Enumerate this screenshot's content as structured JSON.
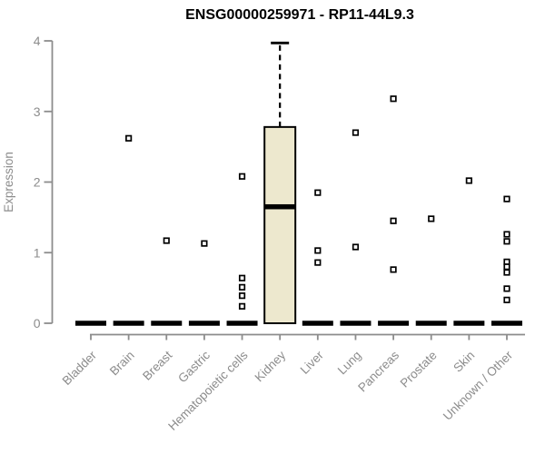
{
  "chart_data": {
    "type": "boxplot",
    "title": "ENSG00000259971 - RP11-44L9.3",
    "xlabel": "",
    "ylabel": "Expression",
    "ylim": [
      0,
      4
    ],
    "yticks": [
      0,
      1,
      2,
      3,
      4
    ],
    "grid": false,
    "legend": "none",
    "categories": [
      "Bladder",
      "Brain",
      "Breast",
      "Gastric",
      "Hematopoietic cells",
      "Kidney",
      "Liver",
      "Lung",
      "Pancreas",
      "Prostate",
      "Skin",
      "Unknown / Other"
    ],
    "boxes": [
      {
        "category": "Bladder",
        "q1": 0,
        "median": 0,
        "q3": 0,
        "whisker_low": 0,
        "whisker_high": 0,
        "outliers": []
      },
      {
        "category": "Brain",
        "q1": 0,
        "median": 0,
        "q3": 0,
        "whisker_low": 0,
        "whisker_high": 0,
        "outliers": [
          2.62
        ]
      },
      {
        "category": "Breast",
        "q1": 0,
        "median": 0,
        "q3": 0,
        "whisker_low": 0,
        "whisker_high": 0,
        "outliers": [
          1.17
        ]
      },
      {
        "category": "Gastric",
        "q1": 0,
        "median": 0,
        "q3": 0,
        "whisker_low": 0,
        "whisker_high": 0,
        "outliers": [
          1.13
        ]
      },
      {
        "category": "Hematopoietic cells",
        "q1": 0,
        "median": 0,
        "q3": 0,
        "whisker_low": 0,
        "whisker_high": 0,
        "outliers": [
          2.08,
          0.64,
          0.51,
          0.39,
          0.24
        ]
      },
      {
        "category": "Kidney",
        "q1": 0,
        "median": 1.65,
        "q3": 2.78,
        "whisker_low": 0,
        "whisker_high": 3.97,
        "outliers": []
      },
      {
        "category": "Liver",
        "q1": 0,
        "median": 0,
        "q3": 0,
        "whisker_low": 0,
        "whisker_high": 0,
        "outliers": [
          1.85,
          1.03,
          0.86
        ]
      },
      {
        "category": "Lung",
        "q1": 0,
        "median": 0,
        "q3": 0,
        "whisker_low": 0,
        "whisker_high": 0,
        "outliers": [
          2.7,
          1.08
        ]
      },
      {
        "category": "Pancreas",
        "q1": 0,
        "median": 0,
        "q3": 0,
        "whisker_low": 0,
        "whisker_high": 0,
        "outliers": [
          3.18,
          1.45,
          0.76
        ]
      },
      {
        "category": "Prostate",
        "q1": 0,
        "median": 0,
        "q3": 0,
        "whisker_low": 0,
        "whisker_high": 0,
        "outliers": [
          1.48
        ]
      },
      {
        "category": "Skin",
        "q1": 0,
        "median": 0,
        "q3": 0,
        "whisker_low": 0,
        "whisker_high": 0,
        "outliers": [
          2.02
        ]
      },
      {
        "category": "Unknown / Other",
        "q1": 0,
        "median": 0,
        "q3": 0,
        "whisker_low": 0,
        "whisker_high": 0,
        "outliers": [
          1.76,
          1.26,
          1.16,
          0.87,
          0.8,
          0.72,
          0.49,
          0.33
        ]
      }
    ],
    "marker": "open-square",
    "colors": {
      "box_fill": "#EDE8CE",
      "box_border": "#000000",
      "median": "#000000",
      "whisker": "#000000",
      "outlier_fill": "#FFFFFF",
      "outlier_border": "#000000",
      "axis": "#8C8C8C",
      "tick_label": "#8C8C8C",
      "title": "#000000",
      "background": "#FFFFFF"
    }
  }
}
